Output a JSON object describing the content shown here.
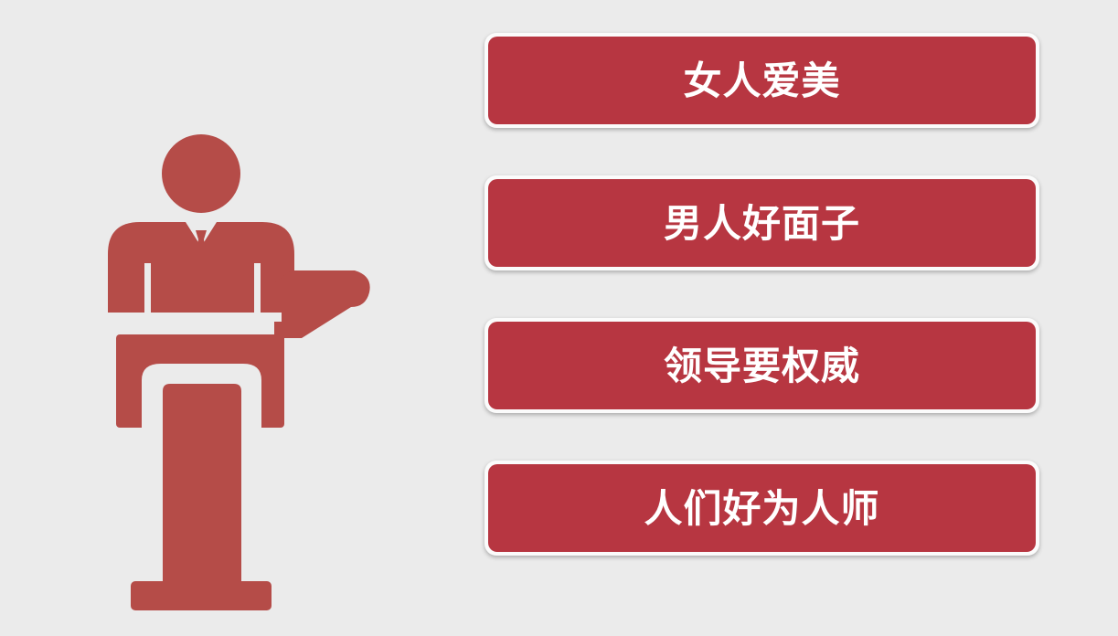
{
  "colors": {
    "background": "#ebebeb",
    "box_fill": "#b73641",
    "box_border": "#fbfbfb",
    "figure": "#b54c48",
    "label_text": "#ffffff"
  },
  "icons": {
    "figure": "speaker-at-podium-icon"
  },
  "items": [
    {
      "label": "女人爱美"
    },
    {
      "label": "男人好面子"
    },
    {
      "label": "领导要权威"
    },
    {
      "label": "人们好为人师"
    }
  ]
}
